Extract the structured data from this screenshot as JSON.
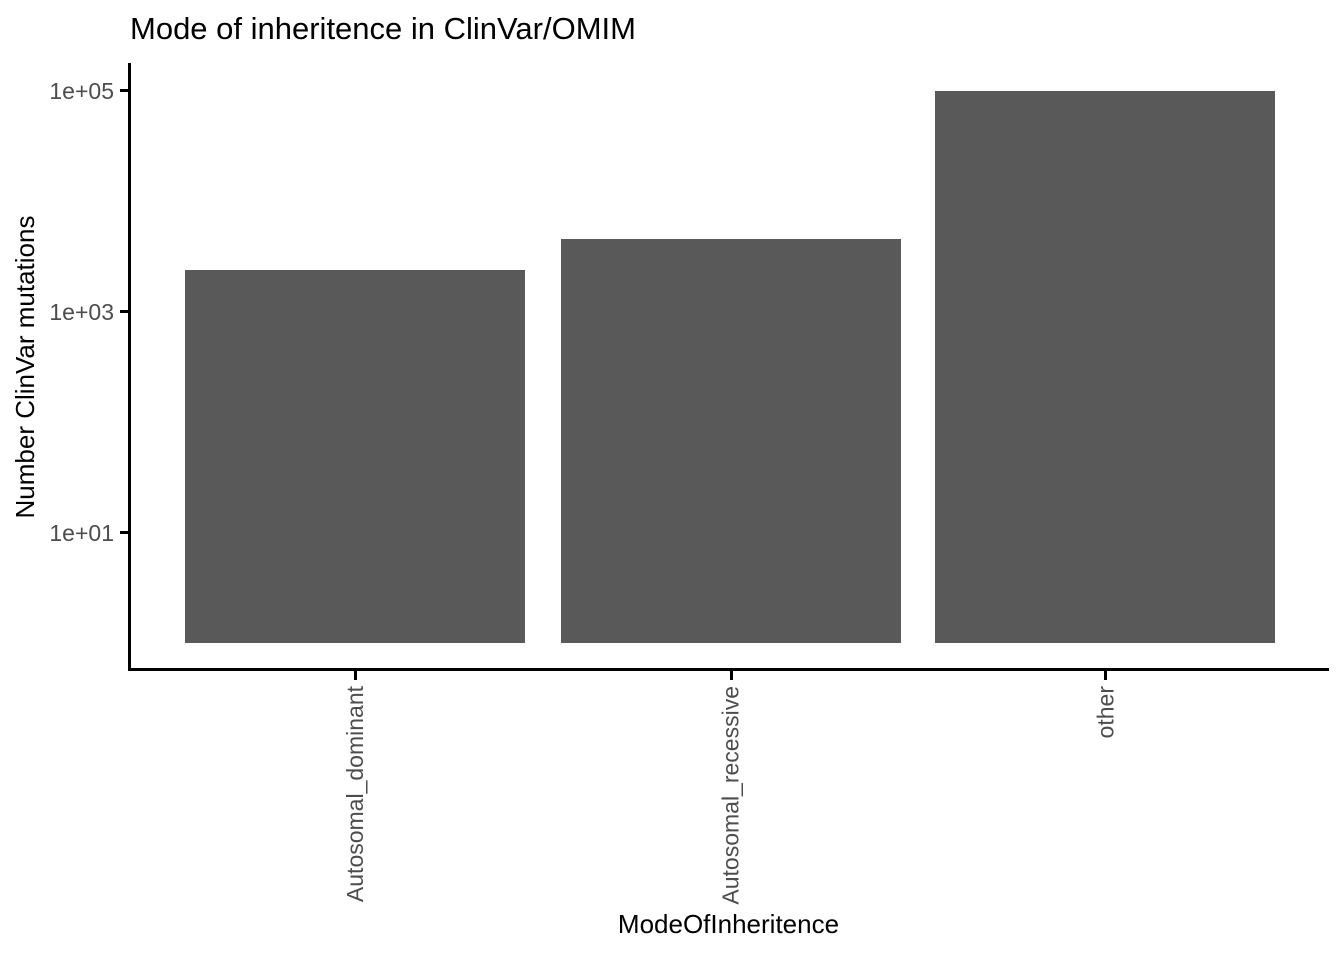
{
  "chart_data": {
    "type": "bar",
    "title": "Mode of inheritence in ClinVar/OMIM",
    "xlabel": "ModeOfInheritence",
    "ylabel": "Number ClinVar mutations",
    "categories": [
      "Autosomal_dominant",
      "Autosomal_recessive",
      "other"
    ],
    "values": [
      2350,
      4500,
      100000
    ],
    "y_scale": "log10",
    "y_ticks": [
      {
        "label": "1e+01",
        "value": 10
      },
      {
        "label": "1e+03",
        "value": 1000
      },
      {
        "label": "1e+05",
        "value": 100000
      }
    ],
    "ylim_log10": [
      0,
      5.2
    ],
    "bar_color": "#595959",
    "axis_color": "#000000",
    "axis_text_color": "#4d4d4d",
    "background": "#ffffff",
    "grid": false,
    "legend": "none"
  }
}
